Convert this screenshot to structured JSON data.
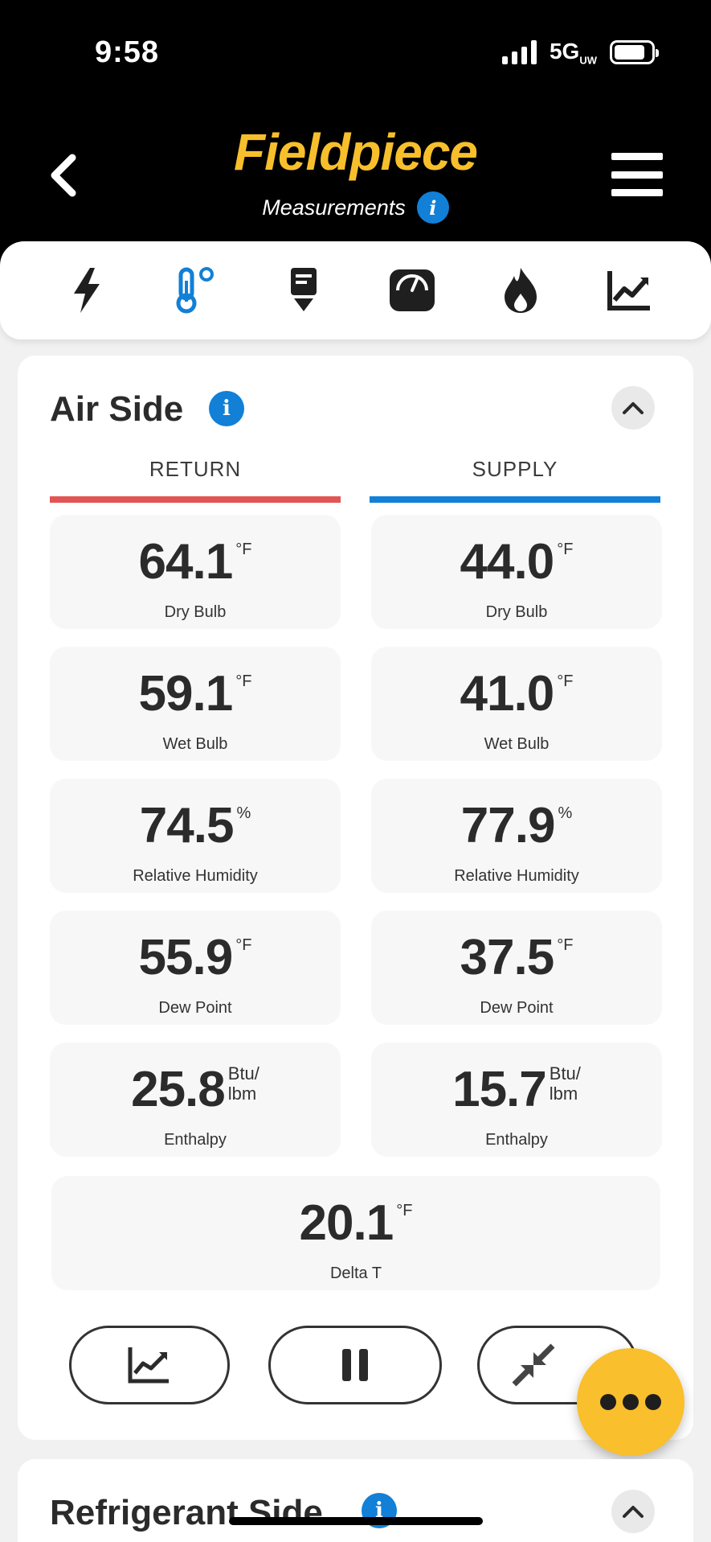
{
  "status_bar": {
    "time": "9:58",
    "network": "5G",
    "network_suffix": "UW"
  },
  "header": {
    "brand": "Fieldpiece",
    "subtitle": "Measurements"
  },
  "categories": [
    {
      "name": "electrical",
      "icon": "lightning-icon"
    },
    {
      "name": "temperature",
      "icon": "thermometer-icon",
      "active": true
    },
    {
      "name": "airflow",
      "icon": "probe-icon"
    },
    {
      "name": "pressure",
      "icon": "gauge-icon"
    },
    {
      "name": "combustion",
      "icon": "flame-icon"
    },
    {
      "name": "graph",
      "icon": "chart-icon"
    }
  ],
  "air_side": {
    "title": "Air Side",
    "return_label": "RETURN",
    "supply_label": "SUPPLY",
    "return_color": "#e35454",
    "supply_color": "#1180d6",
    "return": [
      {
        "value": "64.1",
        "unit": "°F",
        "label": "Dry Bulb"
      },
      {
        "value": "59.1",
        "unit": "°F",
        "label": "Wet Bulb"
      },
      {
        "value": "74.5",
        "unit": "%",
        "label": "Relative Humidity"
      },
      {
        "value": "55.9",
        "unit": "°F",
        "label": "Dew Point"
      },
      {
        "value": "25.8",
        "unit1": "Btu/",
        "unit2": "lbm",
        "label": "Enthalpy"
      }
    ],
    "supply": [
      {
        "value": "44.0",
        "unit": "°F",
        "label": "Dry Bulb"
      },
      {
        "value": "41.0",
        "unit": "°F",
        "label": "Wet Bulb"
      },
      {
        "value": "77.9",
        "unit": "%",
        "label": "Relative Humidity"
      },
      {
        "value": "37.5",
        "unit": "°F",
        "label": "Dew Point"
      },
      {
        "value": "15.7",
        "unit1": "Btu/",
        "unit2": "lbm",
        "label": "Enthalpy"
      }
    ],
    "delta": {
      "value": "20.1",
      "unit": "°F",
      "label": "Delta T"
    }
  },
  "refrigerant_side": {
    "title": "Refrigerant Side"
  },
  "accent": "#f9bf2c"
}
